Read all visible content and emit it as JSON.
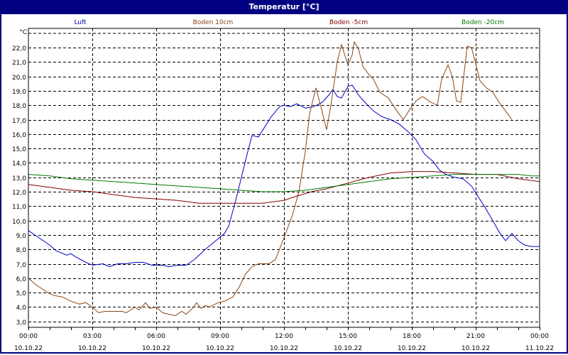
{
  "window": {
    "title": "Temperatur [°C]"
  },
  "chart_data": {
    "type": "line",
    "title": "Temperatur [°C]",
    "ylabel": "°C",
    "xlabel": "",
    "ylim": [
      2.6,
      22.9
    ],
    "xlim_hours": [
      0,
      24
    ],
    "grid": true,
    "legend_position": "top",
    "y_ticks": [
      "3,0",
      "4,0",
      "5,0",
      "6,0",
      "7,0",
      "8,0",
      "9,0",
      "10,0",
      "11,0",
      "12,0",
      "13,0",
      "14,0",
      "15,0",
      "16,0",
      "17,0",
      "18,0",
      "19,0",
      "20,0",
      "21,0",
      "22,0"
    ],
    "x_ticks": [
      {
        "time": "00:00",
        "date": "10.10.22"
      },
      {
        "time": "03:00",
        "date": "10.10.22"
      },
      {
        "time": "06:00",
        "date": "10.10.22"
      },
      {
        "time": "09:00",
        "date": "10.10.22"
      },
      {
        "time": "12:00",
        "date": "10.10.22"
      },
      {
        "time": "15:00",
        "date": "10.10.22"
      },
      {
        "time": "18:00",
        "date": "10.10.22"
      },
      {
        "time": "21:00",
        "date": "10.10.22"
      },
      {
        "time": "00:00",
        "date": "11.10.22"
      }
    ],
    "series": [
      {
        "name": "Luft",
        "color": "#0000cc",
        "points": [
          [
            0,
            9.3
          ],
          [
            0.5,
            8.8
          ],
          [
            1.0,
            8.3
          ],
          [
            1.3,
            7.9
          ],
          [
            1.8,
            7.6
          ],
          [
            2.0,
            7.7
          ],
          [
            2.2,
            7.5
          ],
          [
            2.7,
            7.1
          ],
          [
            3.0,
            6.9
          ],
          [
            3.5,
            7.0
          ],
          [
            3.8,
            6.8
          ],
          [
            4.2,
            7.0
          ],
          [
            4.6,
            7.0
          ],
          [
            5.0,
            7.1
          ],
          [
            5.4,
            7.1
          ],
          [
            5.8,
            6.9
          ],
          [
            6.3,
            6.9
          ],
          [
            6.6,
            6.8
          ],
          [
            7.0,
            6.9
          ],
          [
            7.4,
            6.9
          ],
          [
            7.8,
            7.3
          ],
          [
            8.3,
            8.0
          ],
          [
            8.8,
            8.6
          ],
          [
            9.2,
            9.1
          ],
          [
            9.4,
            9.6
          ],
          [
            9.7,
            11.2
          ],
          [
            10.0,
            13.0
          ],
          [
            10.3,
            14.8
          ],
          [
            10.5,
            15.9
          ],
          [
            10.8,
            15.8
          ],
          [
            11.1,
            16.5
          ],
          [
            11.4,
            17.2
          ],
          [
            11.8,
            17.9
          ],
          [
            12.0,
            18.0
          ],
          [
            12.3,
            17.9
          ],
          [
            12.6,
            18.1
          ],
          [
            13.0,
            17.8
          ],
          [
            13.4,
            17.9
          ],
          [
            13.8,
            18.2
          ],
          [
            14.1,
            18.7
          ],
          [
            14.3,
            19.1
          ],
          [
            14.5,
            18.6
          ],
          [
            14.7,
            18.5
          ],
          [
            15.0,
            19.3
          ],
          [
            15.2,
            19.4
          ],
          [
            15.5,
            18.7
          ],
          [
            15.8,
            18.2
          ],
          [
            16.2,
            17.6
          ],
          [
            16.6,
            17.2
          ],
          [
            17.0,
            17.0
          ],
          [
            17.4,
            16.7
          ],
          [
            17.8,
            16.2
          ],
          [
            18.2,
            15.6
          ],
          [
            18.6,
            14.6
          ],
          [
            19.0,
            14.1
          ],
          [
            19.3,
            13.5
          ],
          [
            19.6,
            13.2
          ],
          [
            20.0,
            13.0
          ],
          [
            20.4,
            12.9
          ],
          [
            20.8,
            12.4
          ],
          [
            21.1,
            11.7
          ],
          [
            21.4,
            11.0
          ],
          [
            21.8,
            10.0
          ],
          [
            22.1,
            9.2
          ],
          [
            22.4,
            8.6
          ],
          [
            22.7,
            9.1
          ],
          [
            23.0,
            8.6
          ],
          [
            23.3,
            8.3
          ],
          [
            23.6,
            8.2
          ],
          [
            24.0,
            8.2
          ]
        ]
      },
      {
        "name": "Boden 10cm",
        "color": "#8b4513",
        "points": [
          [
            0,
            6.0
          ],
          [
            0.3,
            5.6
          ],
          [
            0.6,
            5.3
          ],
          [
            0.9,
            5.0
          ],
          [
            1.2,
            4.8
          ],
          [
            1.6,
            4.7
          ],
          [
            2.0,
            4.4
          ],
          [
            2.4,
            4.2
          ],
          [
            2.7,
            4.3
          ],
          [
            3.0,
            4.0
          ],
          [
            3.3,
            3.6
          ],
          [
            3.6,
            3.7
          ],
          [
            4.0,
            3.7
          ],
          [
            4.4,
            3.7
          ],
          [
            4.6,
            3.6
          ],
          [
            5.0,
            4.0
          ],
          [
            5.2,
            3.8
          ],
          [
            5.5,
            4.3
          ],
          [
            5.7,
            3.9
          ],
          [
            6.0,
            4.0
          ],
          [
            6.3,
            3.6
          ],
          [
            6.6,
            3.5
          ],
          [
            6.9,
            3.4
          ],
          [
            7.2,
            3.7
          ],
          [
            7.4,
            3.5
          ],
          [
            7.7,
            3.9
          ],
          [
            7.9,
            4.3
          ],
          [
            8.1,
            3.9
          ],
          [
            8.3,
            4.1
          ],
          [
            8.5,
            4.0
          ],
          [
            8.9,
            4.3
          ],
          [
            9.2,
            4.4
          ],
          [
            9.6,
            4.7
          ],
          [
            9.9,
            5.4
          ],
          [
            10.2,
            6.3
          ],
          [
            10.5,
            6.8
          ],
          [
            10.8,
            7.0
          ],
          [
            11.0,
            7.0
          ],
          [
            11.3,
            7.0
          ],
          [
            11.6,
            7.3
          ],
          [
            12.0,
            8.8
          ],
          [
            12.4,
            10.4
          ],
          [
            12.7,
            12.0
          ],
          [
            13.0,
            14.8
          ],
          [
            13.2,
            17.4
          ],
          [
            13.5,
            19.2
          ],
          [
            13.8,
            17.5
          ],
          [
            14.0,
            16.3
          ],
          [
            14.2,
            18.0
          ],
          [
            14.5,
            21.0
          ],
          [
            14.7,
            22.2
          ],
          [
            15.0,
            20.8
          ],
          [
            15.2,
            21.5
          ],
          [
            15.3,
            22.4
          ],
          [
            15.5,
            21.9
          ],
          [
            15.7,
            20.7
          ],
          [
            16.0,
            20.1
          ],
          [
            16.2,
            19.8
          ],
          [
            16.5,
            18.9
          ],
          [
            16.9,
            18.5
          ],
          [
            17.3,
            17.6
          ],
          [
            17.6,
            17.0
          ],
          [
            17.9,
            17.7
          ],
          [
            18.2,
            18.3
          ],
          [
            18.5,
            18.6
          ],
          [
            18.9,
            18.2
          ],
          [
            19.2,
            18.0
          ],
          [
            19.4,
            19.8
          ],
          [
            19.7,
            20.8
          ],
          [
            19.9,
            20.0
          ],
          [
            20.1,
            18.3
          ],
          [
            20.3,
            18.2
          ],
          [
            20.5,
            20.8
          ],
          [
            20.6,
            22.1
          ],
          [
            20.8,
            22.0
          ],
          [
            21.0,
            20.9
          ],
          [
            21.2,
            19.7
          ],
          [
            21.5,
            19.2
          ],
          [
            21.8,
            18.9
          ],
          [
            22.1,
            18.2
          ],
          [
            22.4,
            17.6
          ],
          [
            22.7,
            17.0
          ]
        ]
      },
      {
        "name": "Boden -5cm",
        "color": "#800000",
        "points": [
          [
            0,
            12.5
          ],
          [
            1.0,
            12.3
          ],
          [
            2.0,
            12.1
          ],
          [
            3.0,
            12.0
          ],
          [
            4.0,
            11.8
          ],
          [
            5.0,
            11.6
          ],
          [
            6.0,
            11.5
          ],
          [
            7.0,
            11.4
          ],
          [
            8.0,
            11.2
          ],
          [
            9.0,
            11.2
          ],
          [
            10.0,
            11.2
          ],
          [
            11.0,
            11.2
          ],
          [
            12.0,
            11.4
          ],
          [
            12.6,
            11.7
          ],
          [
            13.3,
            12.0
          ],
          [
            14.0,
            12.2
          ],
          [
            15.0,
            12.6
          ],
          [
            16.0,
            13.0
          ],
          [
            17.0,
            13.3
          ],
          [
            18.0,
            13.4
          ],
          [
            19.0,
            13.4
          ],
          [
            20.0,
            13.3
          ],
          [
            21.0,
            13.2
          ],
          [
            22.0,
            13.2
          ],
          [
            23.0,
            12.9
          ],
          [
            24.0,
            12.7
          ]
        ]
      },
      {
        "name": "Boden -20cm",
        "color": "#007a00",
        "points": [
          [
            0,
            13.2
          ],
          [
            1.0,
            13.1
          ],
          [
            2.0,
            12.9
          ],
          [
            3.0,
            12.8
          ],
          [
            4.0,
            12.7
          ],
          [
            5.0,
            12.6
          ],
          [
            6.0,
            12.5
          ],
          [
            7.0,
            12.4
          ],
          [
            8.0,
            12.3
          ],
          [
            9.0,
            12.2
          ],
          [
            10.0,
            12.1
          ],
          [
            11.0,
            12.0
          ],
          [
            12.0,
            12.0
          ],
          [
            13.0,
            12.1
          ],
          [
            14.0,
            12.3
          ],
          [
            15.0,
            12.5
          ],
          [
            16.0,
            12.7
          ],
          [
            17.0,
            12.9
          ],
          [
            18.0,
            13.0
          ],
          [
            19.0,
            13.1
          ],
          [
            20.0,
            13.2
          ],
          [
            21.0,
            13.2
          ],
          [
            22.0,
            13.2
          ],
          [
            23.0,
            13.2
          ],
          [
            23.6,
            13.1
          ],
          [
            24.0,
            13.1
          ]
        ]
      }
    ]
  }
}
